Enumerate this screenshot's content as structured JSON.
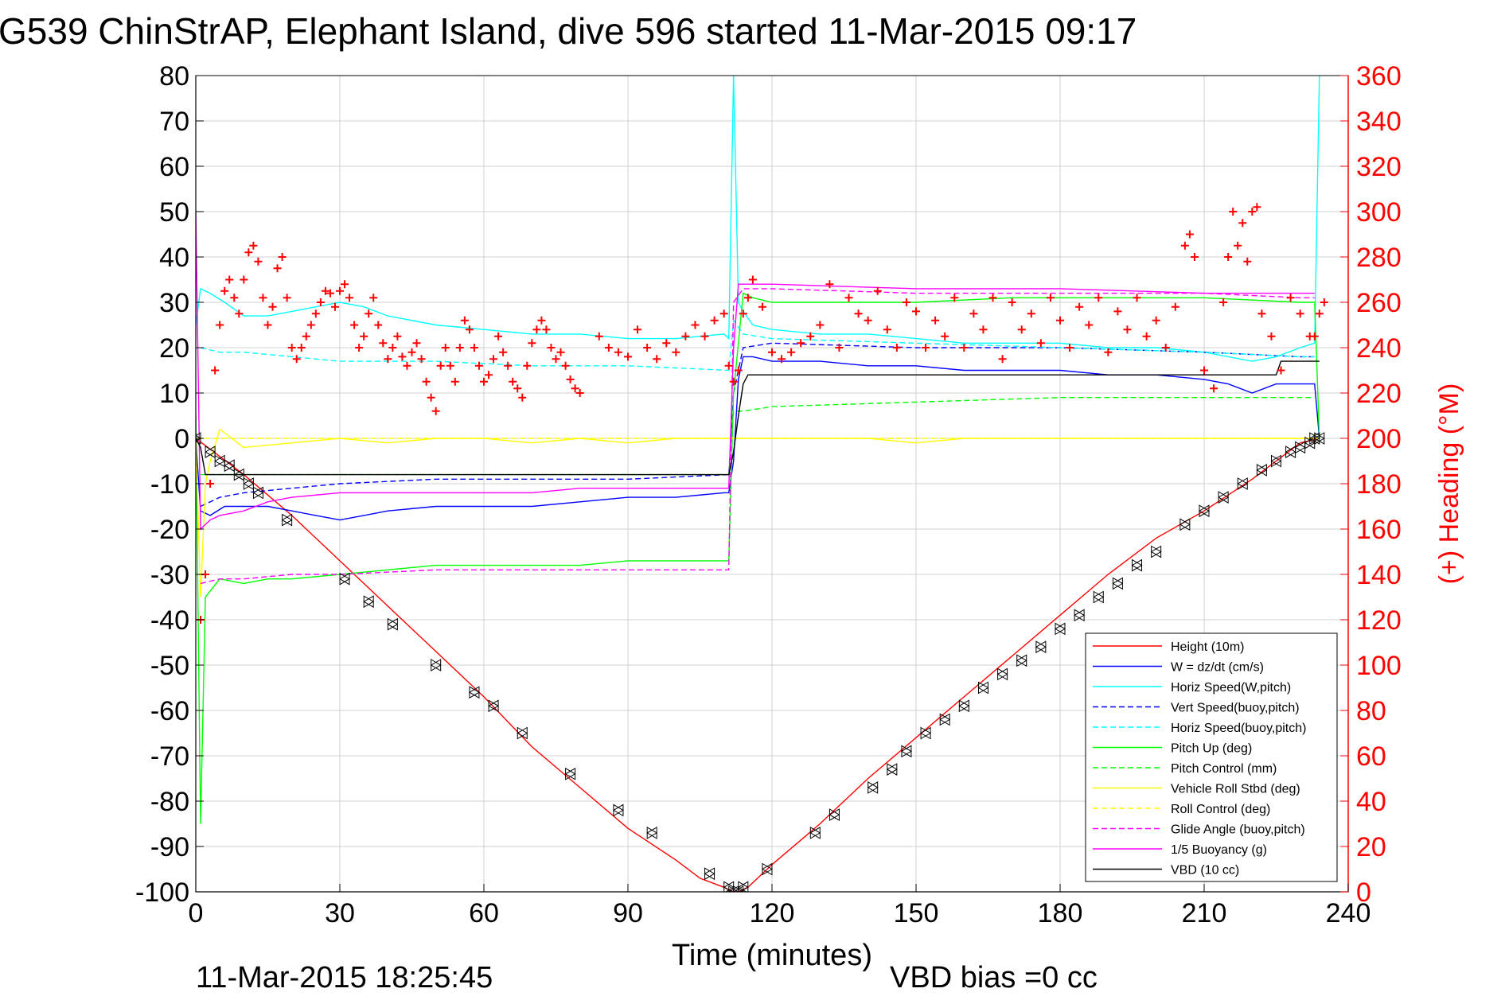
{
  "chart_data": {
    "type": "line",
    "title": "G539 ChinStrAP, Elephant Island, dive 596 started 11-Mar-2015 09:17",
    "xlabel": "Time (minutes)",
    "ylabel": "",
    "y2label": "(+) Heading (°M)",
    "xlim": [
      0,
      240
    ],
    "ylim": [
      -100,
      80
    ],
    "y2lim": [
      0,
      360
    ],
    "xticks": [
      0,
      30,
      60,
      90,
      120,
      150,
      180,
      210,
      240
    ],
    "yticks": [
      80,
      70,
      60,
      50,
      40,
      30,
      20,
      10,
      0,
      -10,
      -20,
      -30,
      -40,
      -50,
      -60,
      -70,
      -80,
      -90,
      -100
    ],
    "y2ticks": [
      360,
      340,
      320,
      300,
      280,
      260,
      240,
      220,
      200,
      180,
      160,
      140,
      120,
      100,
      80,
      60,
      40,
      20,
      0
    ],
    "grid": true,
    "legend_position": "bottom-right",
    "footer_left": "11-Mar-2015 18:25:45",
    "footer_right": "VBD bias =0 cc",
    "colors": {
      "red": "#ff0000",
      "blue": "#0000ff",
      "cyan": "#00ffff",
      "green": "#00ff00",
      "yellow": "#ffff00",
      "magenta": "#ff00ff",
      "black": "#000000"
    },
    "series": [
      {
        "name": "Height (10m)",
        "color": "#ff0000",
        "dash": false,
        "x": [
          0,
          10,
          20,
          30,
          40,
          50,
          60,
          70,
          80,
          90,
          100,
          105,
          110,
          112,
          113,
          115,
          120,
          130,
          140,
          150,
          160,
          170,
          180,
          190,
          200,
          210,
          220,
          230,
          234
        ],
        "y": [
          0,
          -8,
          -17,
          -27,
          -37,
          -47,
          -57,
          -68,
          -77,
          -86,
          -93,
          -97,
          -99,
          -100,
          -100,
          -99,
          -94,
          -85,
          -75,
          -66,
          -57,
          -48,
          -39,
          -30,
          -22,
          -16,
          -9,
          -1,
          0
        ]
      },
      {
        "name": "W = dz/dt (cm/s)",
        "color": "#0000ff",
        "dash": false,
        "x": [
          0,
          1,
          3,
          6,
          10,
          15,
          20,
          25,
          30,
          35,
          40,
          50,
          60,
          70,
          80,
          90,
          100,
          110,
          111,
          112,
          113,
          114,
          116,
          120,
          130,
          140,
          150,
          160,
          170,
          180,
          190,
          200,
          210,
          215,
          220,
          225,
          230,
          233,
          234
        ],
        "y": [
          0,
          -16,
          -17,
          -15,
          -15,
          -15,
          -16,
          -17,
          -18,
          -17,
          -16,
          -15,
          -15,
          -15,
          -14,
          -13,
          -13,
          -12,
          -12,
          -5,
          13,
          18,
          18,
          17,
          17,
          16,
          16,
          15,
          15,
          15,
          14,
          14,
          13,
          12,
          10,
          12,
          12,
          12,
          0
        ]
      },
      {
        "name": "Horiz Speed(W,pitch)",
        "color": "#00ffff",
        "dash": false,
        "x": [
          0,
          1,
          3,
          6,
          10,
          15,
          20,
          25,
          30,
          35,
          40,
          50,
          60,
          70,
          80,
          90,
          100,
          110,
          111,
          112,
          113,
          114,
          116,
          120,
          130,
          140,
          150,
          160,
          170,
          180,
          190,
          200,
          210,
          215,
          220,
          225,
          230,
          233,
          234
        ],
        "y": [
          25,
          33,
          32,
          30,
          27,
          27,
          28,
          29,
          30,
          29,
          27,
          25,
          24,
          23,
          23,
          22,
          22,
          23,
          22,
          80,
          30,
          28,
          25,
          24,
          23,
          23,
          22,
          21,
          21,
          21,
          20,
          20,
          19,
          18,
          17,
          18,
          20,
          21,
          80
        ]
      },
      {
        "name": "Vert Speed(buoy,pitch)",
        "color": "#0000ff",
        "dash": true,
        "x": [
          1,
          5,
          10,
          20,
          30,
          50,
          70,
          90,
          111,
          112,
          114,
          120,
          150,
          180,
          210,
          230,
          233
        ],
        "y": [
          -15,
          -13,
          -12,
          -11,
          -10,
          -9,
          -9,
          -9,
          -8,
          10,
          20,
          21,
          20,
          20,
          19,
          18,
          18
        ]
      },
      {
        "name": "Horiz Speed(buoy,pitch)",
        "color": "#00ffff",
        "dash": true,
        "x": [
          1,
          5,
          10,
          20,
          30,
          50,
          70,
          90,
          111,
          112,
          114,
          120,
          150,
          180,
          210,
          230,
          233
        ],
        "y": [
          20,
          19,
          19,
          18,
          17,
          17,
          16,
          16,
          15,
          26,
          23,
          22,
          21,
          20,
          19,
          18,
          18
        ]
      },
      {
        "name": "Pitch Up (deg)",
        "color": "#00ff00",
        "dash": false,
        "x": [
          0,
          1,
          2,
          5,
          10,
          15,
          20,
          30,
          40,
          50,
          60,
          70,
          80,
          90,
          100,
          110,
          111,
          112,
          114,
          116,
          120,
          130,
          150,
          170,
          190,
          210,
          230,
          233,
          234
        ],
        "y": [
          5,
          -85,
          -35,
          -31,
          -32,
          -31,
          -31,
          -30,
          -29,
          -28,
          -28,
          -28,
          -28,
          -27,
          -27,
          -27,
          -27,
          10,
          32,
          31,
          30,
          30,
          30,
          31,
          31,
          31,
          30,
          30,
          0
        ]
      },
      {
        "name": "Pitch Control (mm)",
        "color": "#00ff00",
        "dash": true,
        "x": [
          1,
          5,
          20,
          40,
          60,
          80,
          100,
          111,
          112,
          114,
          120,
          150,
          180,
          210,
          233
        ],
        "y": [
          -8,
          -8,
          -8,
          -8,
          -8,
          -8,
          -8,
          -8,
          6,
          6,
          7,
          8,
          9,
          9,
          9
        ]
      },
      {
        "name": "Vehicle Roll Stbd (deg)",
        "color": "#ffff00",
        "dash": false,
        "x": [
          0,
          1,
          2,
          3,
          5,
          10,
          20,
          30,
          40,
          50,
          60,
          70,
          80,
          90,
          100,
          110,
          120,
          130,
          140,
          150,
          160,
          170,
          180,
          190,
          200,
          210,
          220,
          230,
          234
        ],
        "y": [
          0,
          -35,
          -10,
          -5,
          2,
          -2,
          -1,
          0,
          -1,
          0,
          0,
          -1,
          0,
          -1,
          0,
          0,
          0,
          0,
          0,
          -1,
          0,
          0,
          0,
          0,
          0,
          0,
          0,
          0,
          0
        ]
      },
      {
        "name": "Roll Control (deg)",
        "color": "#ffff00",
        "dash": true,
        "x": [
          0,
          5,
          30,
          60,
          90,
          120,
          150,
          180,
          210,
          234
        ],
        "y": [
          0,
          0,
          0,
          0,
          0,
          0,
          0,
          0,
          0,
          0
        ]
      },
      {
        "name": "Glide Angle (buoy,pitch)",
        "color": "#ff00ff",
        "dash": true,
        "x": [
          1,
          5,
          10,
          20,
          30,
          50,
          70,
          90,
          111,
          112,
          114,
          120,
          150,
          180,
          210,
          230,
          233
        ],
        "y": [
          -32,
          -31,
          -31,
          -30,
          -30,
          -29,
          -29,
          -29,
          -29,
          30,
          33,
          33,
          32,
          32,
          32,
          31,
          31
        ]
      },
      {
        "name": "1/5 Buoyancy (g)",
        "color": "#ff00ff",
        "dash": false,
        "x": [
          0,
          1,
          3,
          5,
          10,
          15,
          20,
          30,
          40,
          50,
          60,
          70,
          80,
          90,
          100,
          111,
          112,
          113,
          114,
          116,
          120,
          150,
          180,
          210,
          230,
          233
        ],
        "y": [
          50,
          -20,
          -18,
          -17,
          -16,
          -14,
          -13,
          -12,
          -12,
          -12,
          -12,
          -12,
          -11,
          -11,
          -11,
          -11,
          20,
          34,
          34,
          34,
          34,
          33,
          33,
          32,
          32,
          32
        ]
      },
      {
        "name": "VBD (10 cc)",
        "color": "#000000",
        "dash": false,
        "x": [
          0,
          1,
          2,
          30,
          60,
          90,
          110,
          111,
          112,
          113,
          114,
          115,
          120,
          150,
          180,
          210,
          225,
          226,
          233,
          234
        ],
        "y": [
          0,
          -2,
          -8,
          -8,
          -8,
          -8,
          -8,
          -8,
          -3,
          5,
          12,
          14,
          14,
          14,
          14,
          14,
          14,
          17,
          17,
          17
        ]
      }
    ],
    "heading_series": {
      "name": "(+) Heading (°M)",
      "color": "#ff0000",
      "marker": "+",
      "axis": "right",
      "x": [
        1,
        2,
        3,
        4,
        5,
        6,
        7,
        8,
        9,
        10,
        11,
        12,
        13,
        14,
        15,
        16,
        17,
        18,
        19,
        20,
        21,
        22,
        23,
        24,
        25,
        26,
        27,
        28,
        29,
        30,
        31,
        32,
        33,
        34,
        35,
        36,
        37,
        38,
        39,
        40,
        41,
        42,
        43,
        44,
        45,
        46,
        47,
        48,
        49,
        50,
        51,
        52,
        53,
        54,
        55,
        56,
        57,
        58,
        59,
        60,
        61,
        62,
        63,
        64,
        65,
        66,
        67,
        68,
        69,
        70,
        71,
        72,
        73,
        74,
        75,
        76,
        77,
        78,
        79,
        80,
        84,
        86,
        88,
        90,
        92,
        94,
        96,
        98,
        100,
        102,
        104,
        106,
        108,
        110,
        111,
        112,
        113,
        114,
        115,
        116,
        118,
        120,
        122,
        124,
        126,
        128,
        130,
        132,
        134,
        136,
        138,
        140,
        142,
        144,
        146,
        148,
        150,
        152,
        154,
        156,
        158,
        160,
        162,
        164,
        166,
        168,
        170,
        172,
        174,
        176,
        178,
        180,
        182,
        184,
        186,
        188,
        190,
        192,
        194,
        196,
        198,
        200,
        202,
        204,
        206,
        207,
        208,
        210,
        212,
        214,
        215,
        216,
        217,
        218,
        219,
        220,
        221,
        222,
        224,
        226,
        228,
        230,
        232,
        233,
        234,
        235
      ],
      "y": [
        120,
        140,
        180,
        230,
        250,
        265,
        270,
        262,
        255,
        270,
        282,
        285,
        278,
        262,
        250,
        258,
        275,
        280,
        262,
        240,
        235,
        240,
        245,
        250,
        255,
        260,
        265,
        264,
        258,
        265,
        268,
        262,
        250,
        240,
        245,
        255,
        262,
        250,
        242,
        235,
        240,
        245,
        236,
        232,
        238,
        242,
        235,
        225,
        218,
        212,
        232,
        240,
        232,
        225,
        240,
        252,
        248,
        240,
        232,
        225,
        228,
        235,
        245,
        238,
        232,
        225,
        222,
        218,
        232,
        242,
        248,
        252,
        248,
        240,
        235,
        238,
        232,
        226,
        222,
        220,
        245,
        240,
        238,
        236,
        248,
        240,
        235,
        242,
        238,
        245,
        250,
        245,
        252,
        255,
        232,
        225,
        230,
        255,
        262,
        270,
        258,
        238,
        235,
        238,
        242,
        245,
        250,
        268,
        240,
        262,
        255,
        252,
        265,
        248,
        240,
        260,
        256,
        240,
        252,
        245,
        262,
        240,
        255,
        248,
        262,
        235,
        260,
        248,
        255,
        242,
        262,
        252,
        240,
        258,
        250,
        262,
        238,
        256,
        248,
        262,
        245,
        252,
        240,
        258,
        285,
        290,
        280,
        230,
        222,
        260,
        280,
        300,
        285,
        295,
        278,
        300,
        302,
        255,
        245,
        230,
        262,
        255,
        245,
        245,
        255,
        260
      ]
    },
    "marker_series": {
      "name": "",
      "color": "#000000",
      "marker": "triangle",
      "x": [
        0,
        3,
        5,
        7,
        9,
        11,
        13,
        19,
        31,
        36,
        41,
        50,
        58,
        62,
        68,
        78,
        88,
        95,
        107,
        111,
        112,
        113,
        114,
        119,
        129,
        133,
        141,
        145,
        148,
        152,
        156,
        160,
        164,
        168,
        172,
        176,
        180,
        184,
        188,
        192,
        196,
        200,
        206,
        210,
        214,
        218,
        222,
        225,
        228,
        230,
        232,
        233,
        234
      ],
      "y": [
        0,
        -3,
        -5,
        -6,
        -8,
        -10,
        -12,
        -18,
        -31,
        -36,
        -41,
        -50,
        -56,
        -59,
        -65,
        -74,
        -82,
        -87,
        -96,
        -99,
        -100,
        -100,
        -99,
        -95,
        -87,
        -83,
        -77,
        -73,
        -69,
        -65,
        -62,
        -59,
        -55,
        -52,
        -49,
        -46,
        -42,
        -39,
        -35,
        -32,
        -28,
        -25,
        -19,
        -16,
        -13,
        -10,
        -7,
        -5,
        -3,
        -2,
        -1,
        0,
        0
      ]
    }
  }
}
